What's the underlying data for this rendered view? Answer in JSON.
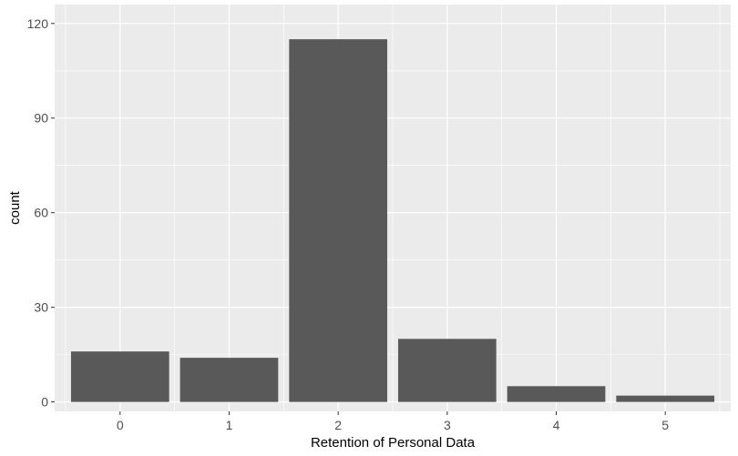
{
  "chart_data": {
    "type": "bar",
    "categories": [
      "0",
      "1",
      "2",
      "3",
      "4",
      "5"
    ],
    "values": [
      16,
      14,
      115,
      20,
      5,
      2
    ],
    "xlabel": "Retention of Personal Data",
    "ylabel": "count",
    "ylim": [
      -3,
      120
    ],
    "yticks": [
      0,
      30,
      60,
      90,
      120
    ],
    "grid": true,
    "legend": "none",
    "colors": {
      "panel": "#ebebeb",
      "grid_major": "#ffffff",
      "bar": "#595959",
      "tick": "#333333"
    }
  }
}
